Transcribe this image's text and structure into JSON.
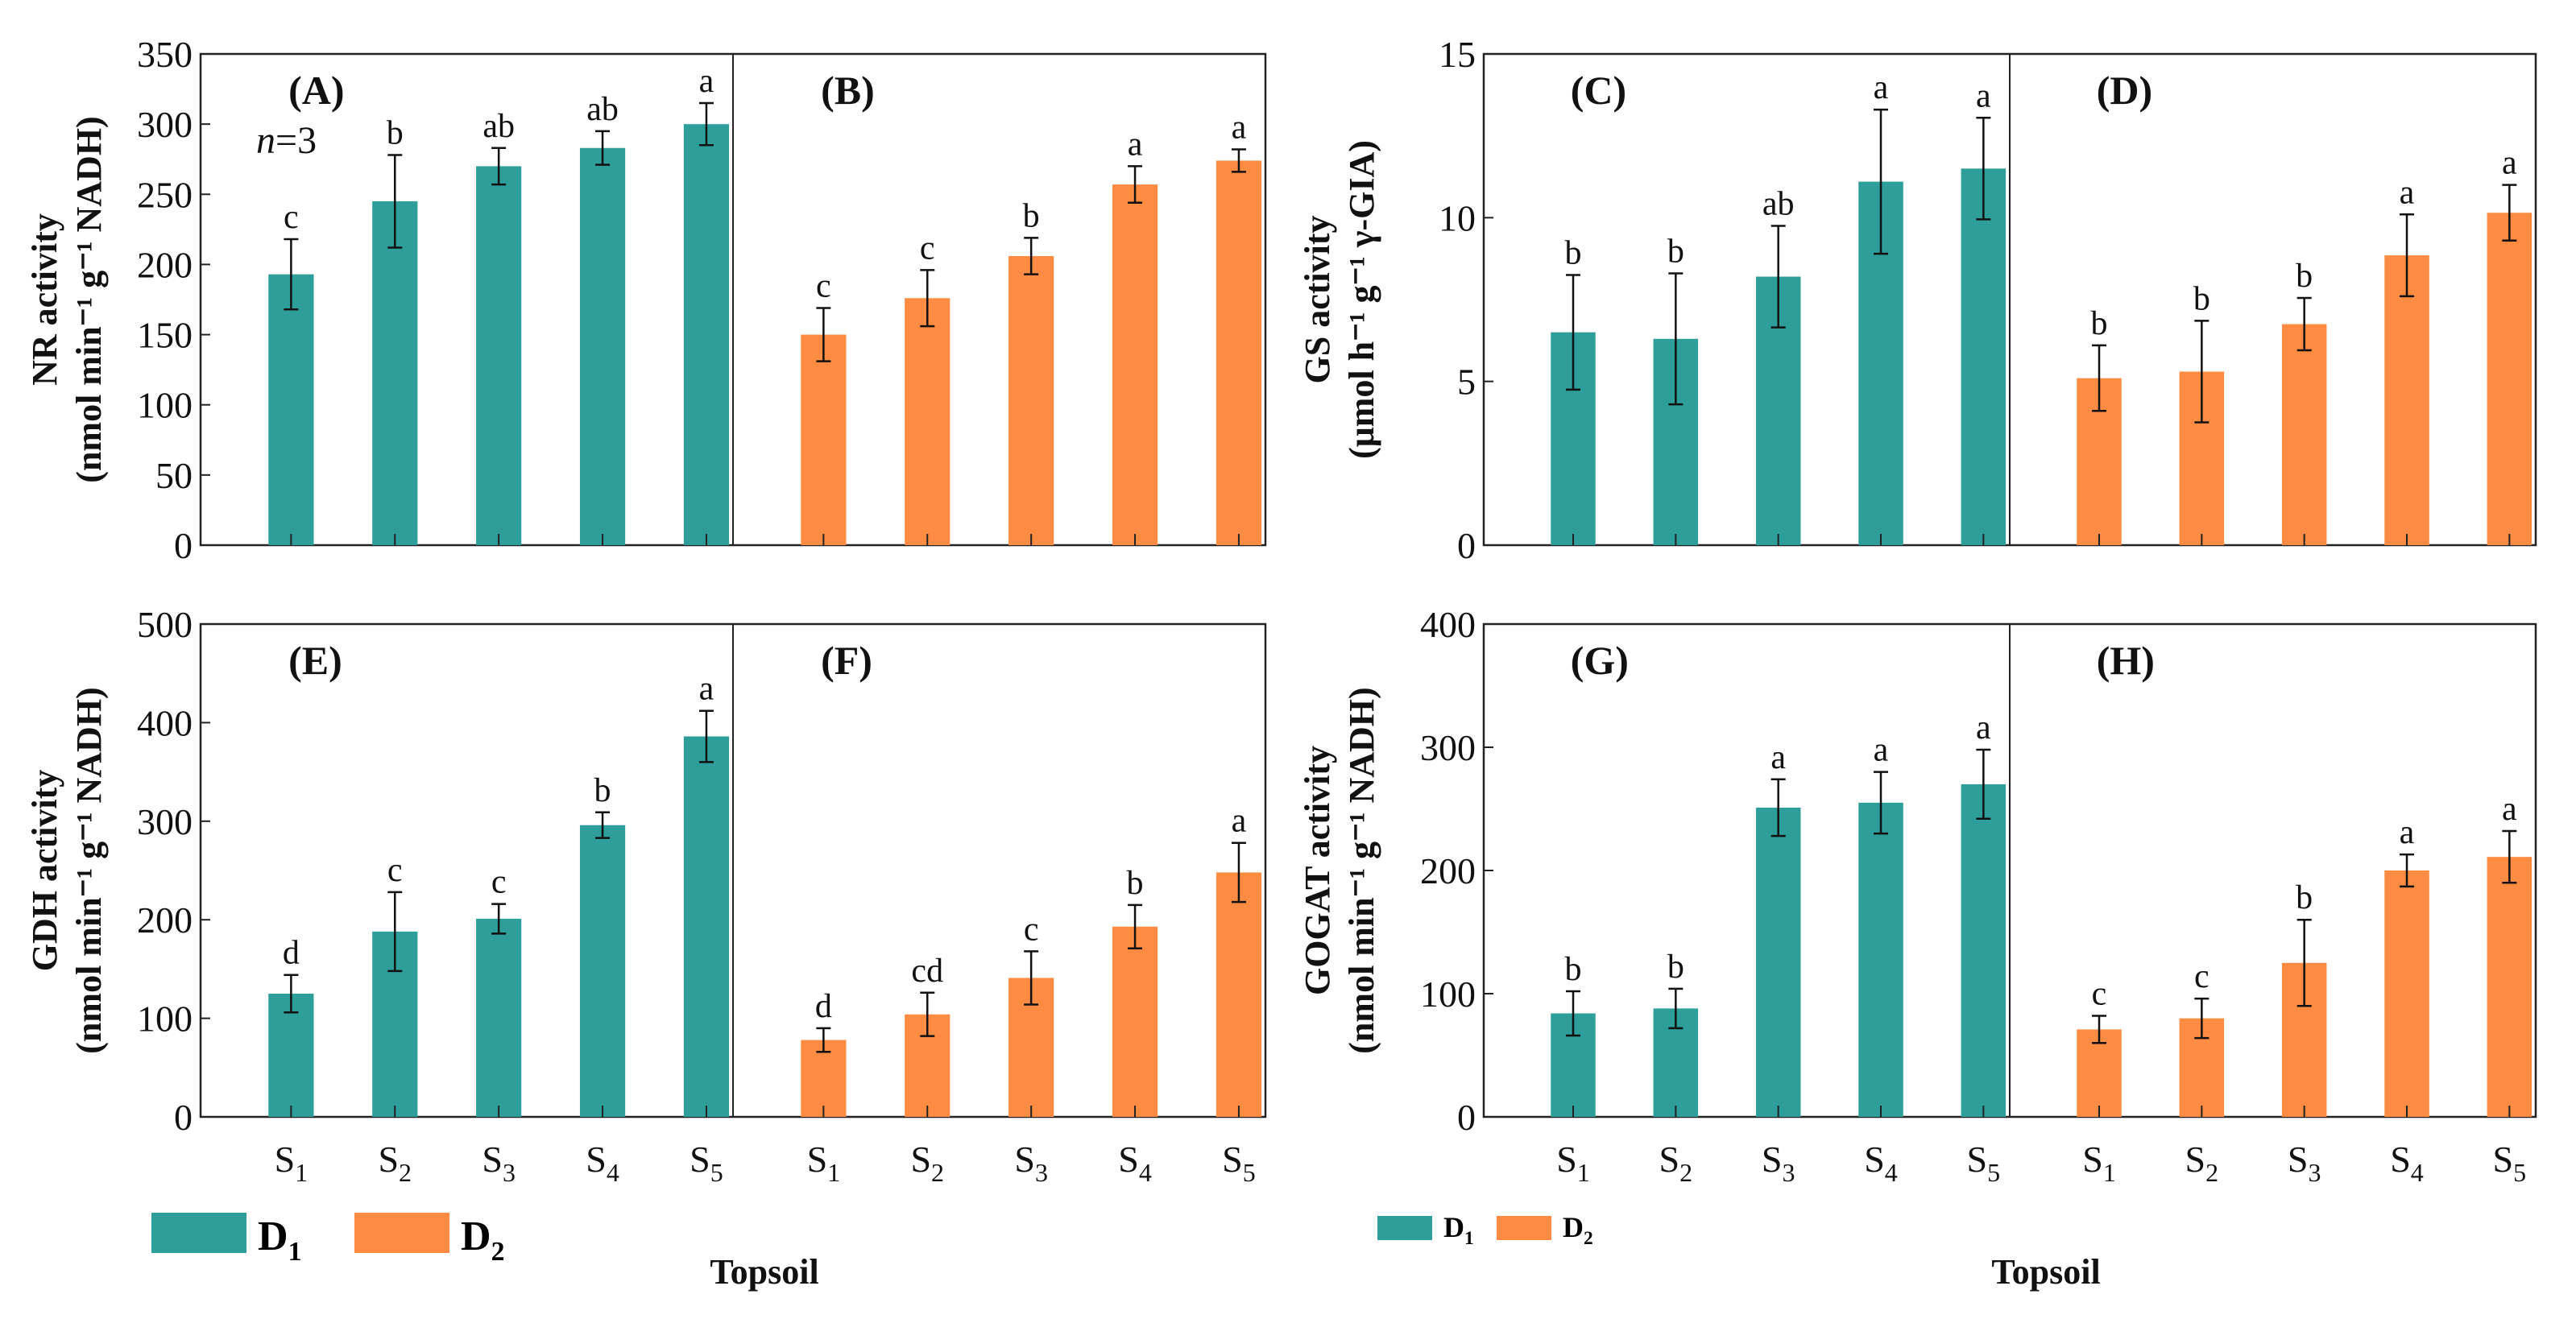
{
  "colors": {
    "D1": "#2E9E9A",
    "D2": "#FF8C42"
  },
  "sample_size_label": {
    "n": "n",
    "rest": "=3"
  },
  "x_title": "Topsoil",
  "legend": [
    {
      "label": "D",
      "sub": "1",
      "series": "D1"
    },
    {
      "label": "D",
      "sub": "2",
      "series": "D2"
    }
  ],
  "chart_data": [
    {
      "type": "bar",
      "ylabel": [
        "NR activity",
        "(nmol min⁻¹ g⁻¹ NADH)"
      ],
      "ylim": [
        0,
        350
      ],
      "yticks": [
        0,
        50,
        100,
        150,
        200,
        250,
        300,
        350
      ],
      "categories": [
        "S1",
        "S2",
        "S3",
        "S4",
        "S5"
      ],
      "panels": [
        {
          "label": "(A)",
          "series": "D1",
          "values": [
            193,
            245,
            270,
            283,
            300
          ],
          "errors": [
            25,
            33,
            13,
            12,
            15
          ],
          "letters": [
            "c",
            "b",
            "ab",
            "ab",
            "a"
          ]
        },
        {
          "label": "(B)",
          "series": "D2",
          "values": [
            150,
            176,
            206,
            257,
            274
          ],
          "errors": [
            19,
            20,
            13,
            13,
            8
          ],
          "letters": [
            "c",
            "c",
            "b",
            "a",
            "a"
          ]
        }
      ]
    },
    {
      "type": "bar",
      "ylabel": [
        "GS activity",
        "(μmol h⁻¹ g⁻¹ γ-GIA)"
      ],
      "ylim": [
        0,
        15
      ],
      "yticks": [
        0,
        5,
        10,
        15
      ],
      "categories": [
        "S1",
        "S2",
        "S3",
        "S4",
        "S5"
      ],
      "panels": [
        {
          "label": "(C)",
          "series": "D1",
          "values": [
            6.5,
            6.3,
            8.2,
            11.1,
            11.5
          ],
          "errors": [
            1.75,
            2.0,
            1.55,
            2.2,
            1.55
          ],
          "letters": [
            "b",
            "b",
            "ab",
            "a",
            "a"
          ]
        },
        {
          "label": "(D)",
          "series": "D2",
          "values": [
            5.1,
            5.3,
            6.75,
            8.85,
            10.15
          ],
          "errors": [
            1.0,
            1.55,
            0.8,
            1.25,
            0.85
          ],
          "letters": [
            "b",
            "b",
            "b",
            "a",
            "a"
          ]
        }
      ]
    },
    {
      "type": "bar",
      "ylabel": [
        "GDH activity",
        "(nmol min⁻¹ g⁻¹ NADH)"
      ],
      "ylim": [
        0,
        500
      ],
      "yticks": [
        0,
        100,
        200,
        300,
        400,
        500
      ],
      "categories": [
        "S1",
        "S2",
        "S3",
        "S4",
        "S5"
      ],
      "panels": [
        {
          "label": "(E)",
          "series": "D1",
          "values": [
            125,
            188,
            201,
            296,
            386
          ],
          "errors": [
            19,
            40,
            15,
            13,
            26
          ],
          "letters": [
            "d",
            "c",
            "c",
            "b",
            "a"
          ]
        },
        {
          "label": "(F)",
          "series": "D2",
          "values": [
            78,
            104,
            141,
            193,
            248
          ],
          "errors": [
            12,
            22,
            27,
            22,
            30
          ],
          "letters": [
            "d",
            "cd",
            "c",
            "b",
            "a"
          ]
        }
      ]
    },
    {
      "type": "bar",
      "ylabel": [
        "GOGAT activity",
        "(nmol min⁻¹ g⁻¹ NADH)"
      ],
      "ylim": [
        0,
        400
      ],
      "yticks": [
        0,
        100,
        200,
        300,
        400
      ],
      "categories": [
        "S1",
        "S2",
        "S3",
        "S4",
        "S5"
      ],
      "panels": [
        {
          "label": "(G)",
          "series": "D1",
          "values": [
            84,
            88,
            251,
            255,
            270
          ],
          "errors": [
            18,
            16,
            23,
            25,
            28
          ],
          "letters": [
            "b",
            "b",
            "a",
            "a",
            "a"
          ]
        },
        {
          "label": "(H)",
          "series": "D2",
          "values": [
            71,
            80,
            125,
            200,
            211
          ],
          "errors": [
            11,
            16,
            35,
            13,
            21
          ],
          "letters": [
            "c",
            "c",
            "b",
            "a",
            "a"
          ]
        }
      ]
    }
  ]
}
